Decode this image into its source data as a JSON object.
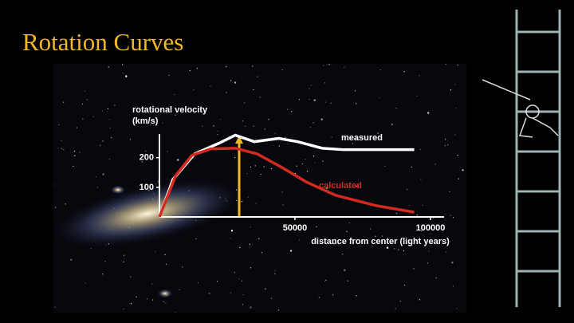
{
  "chart_data": {
    "type": "line",
    "title": "Rotation Curves",
    "ylabel": "rotational velocity (km/s)",
    "xlabel": "distance from center (light years)",
    "xlim": [
      0,
      105000
    ],
    "ylim": [
      0,
      280
    ],
    "xticks": [
      50000,
      100000
    ],
    "yticks": [
      100,
      200
    ],
    "series": [
      {
        "name": "measured",
        "color": "#ffffff",
        "x": [
          0,
          5000,
          13000,
          22000,
          28000,
          35000,
          44000,
          51000,
          60000,
          68000,
          80000,
          94000
        ],
        "values": [
          0,
          127,
          213,
          249,
          276,
          254,
          265,
          254,
          232,
          227,
          227,
          227
        ]
      },
      {
        "name": "calculated",
        "color": "#d42a1f",
        "x": [
          0,
          6000,
          12000,
          19000,
          28000,
          36000,
          45000,
          54000,
          65000,
          80000,
          94000
        ],
        "values": [
          0,
          140,
          208,
          230,
          232,
          213,
          168,
          119,
          73,
          38,
          16
        ]
      }
    ]
  }
}
